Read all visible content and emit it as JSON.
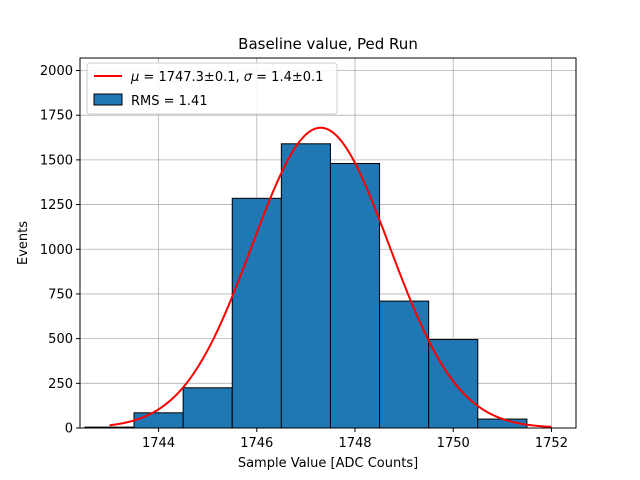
{
  "chart_data": {
    "type": "bar",
    "title": "Baseline value, Ped Run",
    "xlabel": "Sample Value [ADC Counts]",
    "ylabel": "Events",
    "xlim": [
      1742.4,
      1752.5
    ],
    "ylim": [
      0,
      2070
    ],
    "xticks": [
      1744,
      1746,
      1748,
      1750,
      1752
    ],
    "yticks": [
      0,
      250,
      500,
      750,
      1000,
      1250,
      1500,
      1750,
      2000
    ],
    "grid": true,
    "legend_position": "top-left",
    "histogram": {
      "name": "RMS = 1.41",
      "bin_edges": [
        1742.5,
        1743.5,
        1744.5,
        1745.5,
        1746.5,
        1747.5,
        1748.5,
        1749.5,
        1750.5,
        1751.5
      ],
      "values": [
        5,
        85,
        225,
        1285,
        1590,
        1480,
        710,
        495,
        50
      ],
      "color": "#1f77b4"
    },
    "fit": {
      "name": "$\\mu = 1747.3\\pm0.1$, $\\sigma = 1.4\\pm0.1$",
      "name_parts": {
        "mu_symbol": "μ",
        "mu_text": " = 1747.3±0.1, ",
        "sigma_symbol": "σ",
        "sigma_text": " = 1.4±0.1"
      },
      "type": "gaussian",
      "amplitude": 1680,
      "mean": 1747.3,
      "sigma": 1.4,
      "x_range": [
        1743,
        1752
      ],
      "color": "#ff0000"
    }
  }
}
